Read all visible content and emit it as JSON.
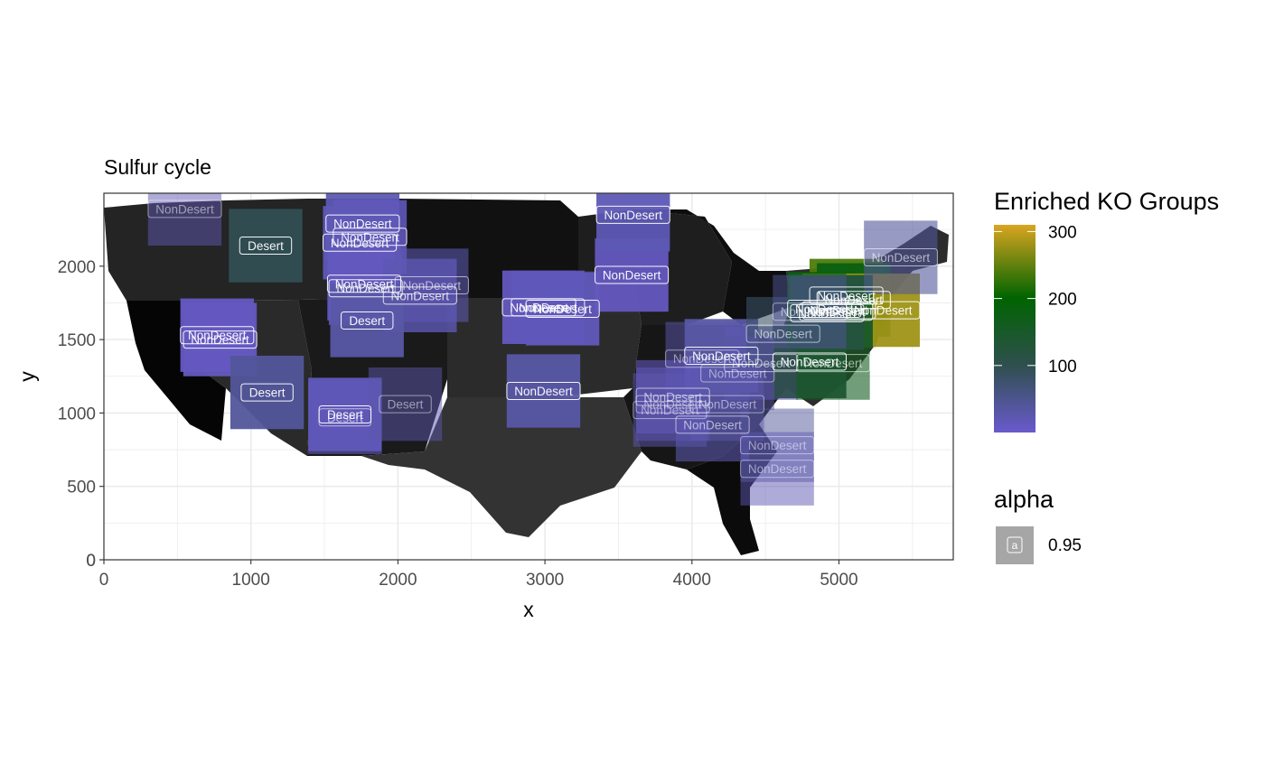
{
  "chart_data": {
    "type": "heatmap",
    "title": "Sulfur cycle",
    "xlabel": "x",
    "ylabel": "y",
    "xlim": [
      0,
      5800
    ],
    "ylim": [
      0,
      2500
    ],
    "x_ticks": [
      0,
      1000,
      2000,
      3000,
      4000,
      5000
    ],
    "y_ticks": [
      0,
      500,
      1000,
      1500,
      2000
    ],
    "grid": true,
    "legend": {
      "position": "right",
      "color_title": "Enriched KO Groups",
      "color_ticks": [
        100,
        200,
        300
      ],
      "color_range": [
        0,
        310
      ],
      "colors": [
        "#6a5acd",
        "#2f4f4f",
        "#006400",
        "#daa520"
      ],
      "alpha_title": "alpha",
      "alpha_value": "0.95",
      "alpha_key_glyph": "a"
    },
    "map_background": "contiguous United States state outlines in dark gray shades",
    "points": [
      {
        "x": 1100,
        "y": 2140,
        "value": 95,
        "label": "Desert",
        "alpha": 0.95
      },
      {
        "x": 550,
        "y": 2390,
        "value": 20,
        "label": "NonDesert",
        "alpha": 0.5
      },
      {
        "x": 1760,
        "y": 2290,
        "value": 20,
        "label": "NonDesert",
        "alpha": 0.95
      },
      {
        "x": 1810,
        "y": 2200,
        "value": 15,
        "label": "NonDesert",
        "alpha": 0.9
      },
      {
        "x": 1740,
        "y": 2160,
        "value": 18,
        "label": "NonDesert",
        "alpha": 0.95
      },
      {
        "x": 1770,
        "y": 1880,
        "value": 15,
        "label": "NonDesert",
        "alpha": 0.95
      },
      {
        "x": 1780,
        "y": 1850,
        "value": 12,
        "label": "NonDesert",
        "alpha": 0.9
      },
      {
        "x": 2230,
        "y": 1870,
        "value": 25,
        "label": "NonDesert",
        "alpha": 0.6
      },
      {
        "x": 2150,
        "y": 1800,
        "value": 20,
        "label": "NonDesert",
        "alpha": 0.8
      },
      {
        "x": 1790,
        "y": 1630,
        "value": 30,
        "label": "Desert",
        "alpha": 0.95
      },
      {
        "x": 770,
        "y": 1530,
        "value": 8,
        "label": "NonDesert",
        "alpha": 0.95
      },
      {
        "x": 790,
        "y": 1500,
        "value": 10,
        "label": "NonDesert",
        "alpha": 0.95
      },
      {
        "x": 1110,
        "y": 1140,
        "value": 40,
        "label": "Desert",
        "alpha": 0.95
      },
      {
        "x": 1640,
        "y": 990,
        "value": 15,
        "label": "Desert",
        "alpha": 0.95
      },
      {
        "x": 1640,
        "y": 970,
        "value": 15,
        "label": "Desert",
        "alpha": 0.6
      },
      {
        "x": 2050,
        "y": 1060,
        "value": 25,
        "label": "Desert",
        "alpha": 0.5
      },
      {
        "x": 2960,
        "y": 1720,
        "value": 10,
        "label": "NonDesert",
        "alpha": 0.95
      },
      {
        "x": 3120,
        "y": 1710,
        "value": 15,
        "label": "NonDesert",
        "alpha": 0.95
      },
      {
        "x": 3020,
        "y": 1720,
        "value": 15,
        "label": "NonDesert",
        "alpha": 0.9
      },
      {
        "x": 3590,
        "y": 1940,
        "value": 10,
        "label": "NonDesert",
        "alpha": 0.95
      },
      {
        "x": 3600,
        "y": 2350,
        "value": 20,
        "label": "NonDesert",
        "alpha": 0.95
      },
      {
        "x": 2990,
        "y": 1150,
        "value": 30,
        "label": "NonDesert",
        "alpha": 0.95
      },
      {
        "x": 4070,
        "y": 1370,
        "value": 20,
        "label": "NonDesert",
        "alpha": 0.5
      },
      {
        "x": 4200,
        "y": 1390,
        "value": 30,
        "label": "NonDesert",
        "alpha": 0.95
      },
      {
        "x": 4470,
        "y": 1340,
        "value": 20,
        "label": "NonDesert",
        "alpha": 0.6
      },
      {
        "x": 4620,
        "y": 1540,
        "value": 80,
        "label": "NonDesert",
        "alpha": 0.6
      },
      {
        "x": 4800,
        "y": 1350,
        "value": 100,
        "label": "NonDesert",
        "alpha": 0.95
      },
      {
        "x": 4960,
        "y": 1340,
        "value": 160,
        "label": "NonDesert",
        "alpha": 0.6
      },
      {
        "x": 3870,
        "y": 1110,
        "value": 15,
        "label": "NonDesert",
        "alpha": 0.6
      },
      {
        "x": 3870,
        "y": 1060,
        "value": 15,
        "label": "NonDesert",
        "alpha": 0.5
      },
      {
        "x": 3850,
        "y": 1020,
        "value": 20,
        "label": "NonDesert",
        "alpha": 0.5
      },
      {
        "x": 4140,
        "y": 920,
        "value": 25,
        "label": "NonDesert",
        "alpha": 0.6
      },
      {
        "x": 4310,
        "y": 1270,
        "value": 35,
        "label": "NonDesert",
        "alpha": 0.5
      },
      {
        "x": 4240,
        "y": 1060,
        "value": 25,
        "label": "NonDesert",
        "alpha": 0.5
      },
      {
        "x": 4580,
        "y": 780,
        "value": 40,
        "label": "NonDesert",
        "alpha": 0.5
      },
      {
        "x": 4580,
        "y": 620,
        "value": 20,
        "label": "NonDesert",
        "alpha": 0.5
      },
      {
        "x": 5050,
        "y": 1800,
        "value": 240,
        "label": "NonDesert",
        "alpha": 0.95
      },
      {
        "x": 5100,
        "y": 1770,
        "value": 180,
        "label": "NonDesert",
        "alpha": 0.95
      },
      {
        "x": 4900,
        "y": 1710,
        "value": 180,
        "label": "NonDesert",
        "alpha": 0.95
      },
      {
        "x": 5000,
        "y": 1700,
        "value": 230,
        "label": "NonDesert",
        "alpha": 0.95
      },
      {
        "x": 5300,
        "y": 1700,
        "value": 280,
        "label": "NonDesert",
        "alpha": 0.95
      },
      {
        "x": 4980,
        "y": 1690,
        "value": 150,
        "label": "NonDesert",
        "alpha": 0.95
      },
      {
        "x": 4920,
        "y": 1680,
        "value": 120,
        "label": "NonDesert",
        "alpha": 0.95
      },
      {
        "x": 4800,
        "y": 1690,
        "value": 40,
        "label": "NonDesert",
        "alpha": 0.5
      },
      {
        "x": 5420,
        "y": 2060,
        "value": 40,
        "label": "NonDesert",
        "alpha": 0.6
      }
    ]
  }
}
